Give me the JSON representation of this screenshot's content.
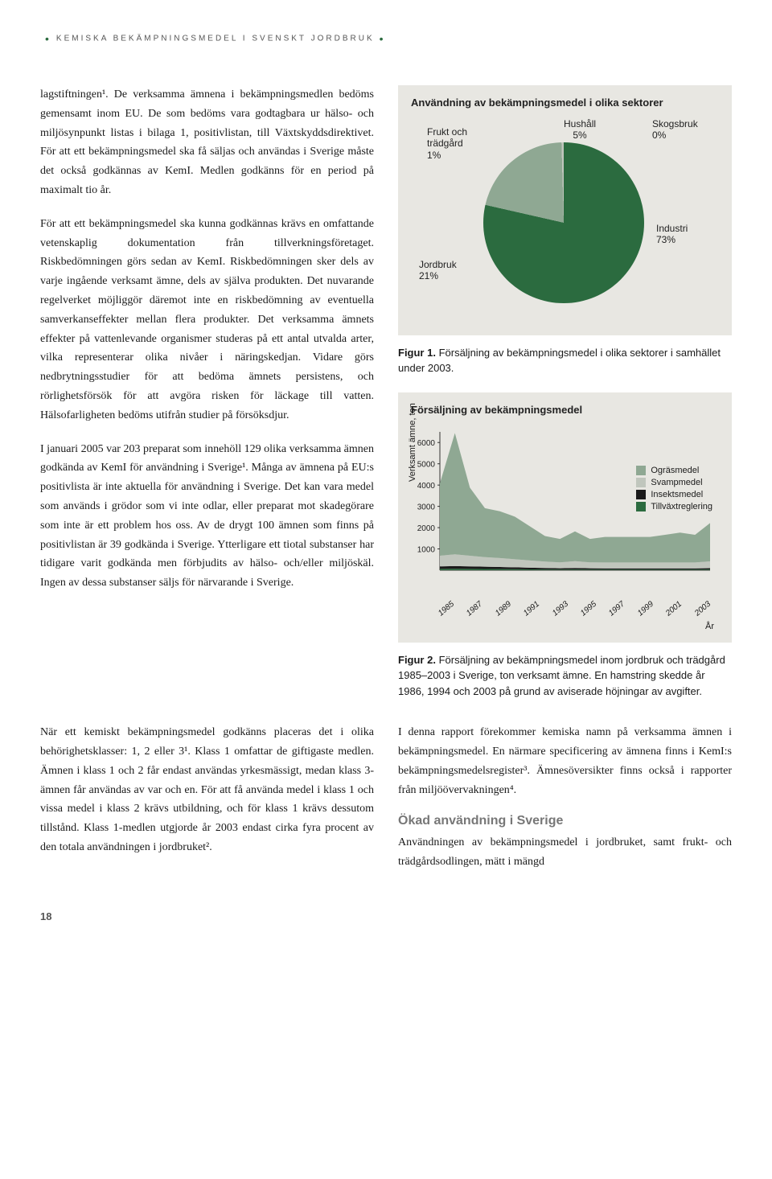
{
  "running_head": "KEMISKA BEKÄMPNINGSMEDEL I SVENSKT JORDBRUK",
  "page_number": "18",
  "left_paragraphs": [
    "lagstiftningen¹. De verksamma ämnena i bekämpningsmedlen bedöms gemensamt inom EU. De som bedöms vara godtagbara ur hälso- och miljösynpunkt listas i bilaga 1, positivlistan, till Växtskyddsdirektivet. För att ett bekämpningsmedel ska få säljas och användas i Sverige måste det också godkännas av KemI. Medlen godkänns för en period på maximalt tio år.",
    "För att ett bekämpningsmedel ska kunna godkännas krävs en omfattande vetenskaplig dokumentation från tillverkningsföretaget. Riskbedömningen görs sedan av KemI. Riskbedömningen sker dels av varje ingående verksamt ämne, dels av själva produkten. Det nuvarande regelverket möjliggör däremot inte en riskbedömning av eventuella samverkanseffekter mellan flera produkter. Det verksamma ämnets effekter på vattenlevande organismer studeras på ett antal utvalda arter, vilka representerar olika nivåer i näringskedjan. Vidare görs nedbrytningsstudier för att bedöma ämnets persistens, och rörlighetsförsök för att avgöra risken för läckage till vatten. Hälsofarligheten bedöms utifrån studier på försöksdjur.",
    "I januari 2005 var 203 preparat som innehöll 129 olika verksamma ämnen godkända av KemI för användning i Sverige¹. Många av ämnena på EU:s positivlista är inte aktuella för användning i Sverige. Det kan vara medel som används i grödor som vi inte odlar, eller preparat mot skadegörare som inte är ett problem hos oss. Av de drygt 100 ämnen som finns på positivlistan är 39 godkända i Sverige. Ytterligare ett tiotal substanser har tidigare varit godkända men förbjudits av hälso- och/eller miljöskäl. Ingen av dessa substanser säljs för närvarande i Sverige.",
    "När ett kemiskt bekämpningsmedel godkänns placeras det i olika behörighetsklasser: 1, 2 eller 3¹. Klass 1 omfattar de giftigaste medlen. Ämnen i klass 1 och 2 får endast användas yrkesmässigt, medan klass 3-ämnen får användas av var och en. För att få använda medel i klass 1 och vissa medel i klass 2 krävs utbildning, och för klass 1 krävs dessutom tillstånd. Klass 1-medlen utgjorde år 2003 endast cirka fyra procent av den totala användningen i jordbruket²."
  ],
  "right_paragraphs": [
    "I denna rapport förekommer kemiska namn på verksamma ämnen i bekämpningsmedel. En närmare specificering av ämnena finns i KemI:s bekämpningsmedelsregister³. Ämnesöversikter finns också i rapporter från miljöövervakningen⁴."
  ],
  "right_section_head": "Ökad användning i Sverige",
  "right_tail": "Användningen av bekämpningsmedel i jordbruket, samt frukt- och trädgårdsodlingen, mätt i mängd",
  "pie_chart": {
    "title": "Användning av bekämpningsmedel i olika sektorer",
    "background_color": "#e8e7e2",
    "slices": [
      {
        "label": "Industri",
        "value": 73,
        "color": "#2b6b3f"
      },
      {
        "label": "Jordbruk",
        "value": 21,
        "color": "#8fa893"
      },
      {
        "label": "Hushåll",
        "value": 5,
        "color": "#c0c6bd"
      },
      {
        "label": "Frukt och trädgård",
        "value": 1,
        "color": "#dcdcd4",
        "multiline": "Frukt och\nträdgård\n1%"
      },
      {
        "label": "Skogsbruk",
        "value": 0,
        "color": "#1a472a"
      }
    ],
    "label_font": "Helvetica",
    "label_fontsize": 12,
    "label_color": "#222222"
  },
  "figure1_caption_bold": "Figur 1.",
  "figure1_caption_text": " Försäljning av bekämpningsmedel i olika sektorer i samhället under 2003.",
  "area_chart": {
    "title": "Försäljning av bekämpningsmedel",
    "background_color": "#e8e7e2",
    "y_label": "Verksamt ämne, ton",
    "x_label": "År",
    "ylim": [
      0,
      6500
    ],
    "yticks": [
      1000,
      2000,
      3000,
      4000,
      5000,
      6000
    ],
    "years": [
      1985,
      1986,
      1987,
      1988,
      1989,
      1990,
      1991,
      1992,
      1993,
      1994,
      1995,
      1996,
      1997,
      1998,
      1999,
      2000,
      2001,
      2002,
      2003
    ],
    "x_tick_labels": [
      "1985",
      "1987",
      "1989",
      "1991",
      "1993",
      "1995",
      "1997",
      "1999",
      "2001",
      "2003"
    ],
    "series": [
      {
        "name": "Ogräsmedel",
        "color": "#8fa893",
        "values": [
          3400,
          5700,
          3200,
          2300,
          2200,
          2000,
          1600,
          1200,
          1100,
          1400,
          1100,
          1200,
          1200,
          1200,
          1200,
          1300,
          1400,
          1300,
          1800
        ]
      },
      {
        "name": "Svampmedel",
        "color": "#c0c6bd",
        "values": [
          500,
          550,
          500,
          450,
          420,
          380,
          340,
          300,
          280,
          320,
          280,
          280,
          280,
          280,
          280,
          280,
          280,
          280,
          320
        ]
      },
      {
        "name": "Insektsmedel",
        "color": "#1a1a1a",
        "values": [
          120,
          130,
          120,
          110,
          100,
          90,
          80,
          70,
          60,
          70,
          60,
          55,
          55,
          55,
          55,
          55,
          55,
          55,
          60
        ]
      },
      {
        "name": "Tillväxtreglering",
        "color": "#2b6b3f",
        "values": [
          60,
          65,
          60,
          55,
          50,
          45,
          40,
          35,
          30,
          35,
          30,
          30,
          30,
          30,
          30,
          30,
          30,
          30,
          35
        ]
      }
    ],
    "legend_fontsize": 11,
    "axis_fontsize": 11
  },
  "figure2_caption_bold": "Figur 2.",
  "figure2_caption_text": " Försäljning av bekämpningsmedel inom jordbruk och trädgård 1985–2003 i Sverige, ton verksamt ämne. En hamstring skedde år 1986, 1994 och 2003 på grund av aviserade höjningar av avgifter."
}
